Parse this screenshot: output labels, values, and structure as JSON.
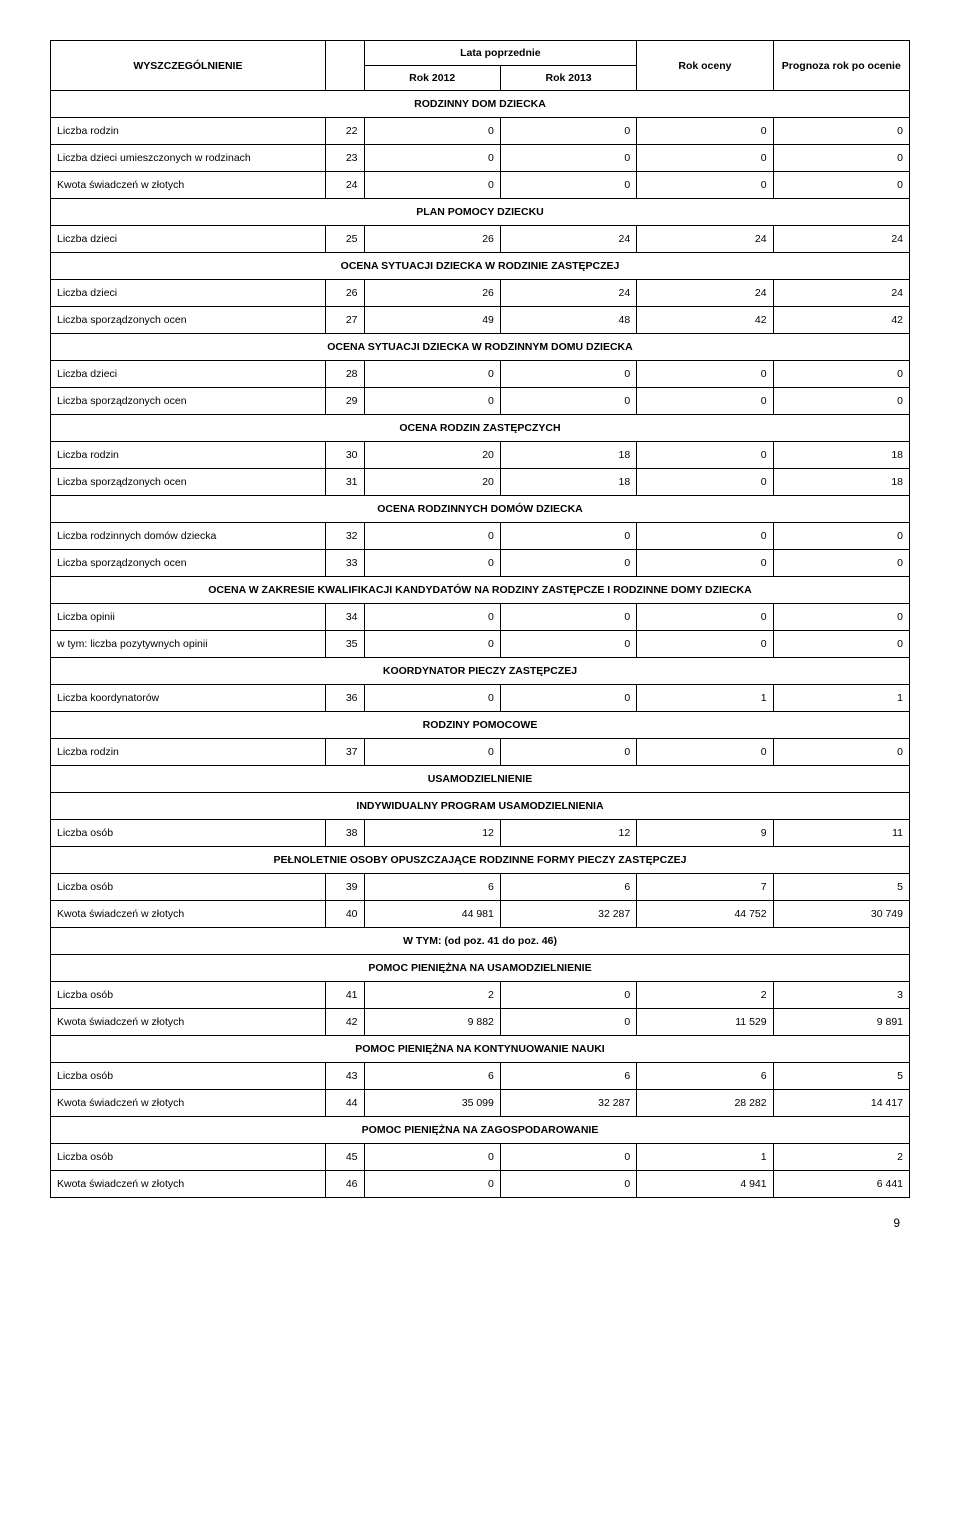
{
  "header": {
    "col1": "WYSZCZEGÓLNIENIE",
    "col2": "Lata poprzednie",
    "col2a": "Rok 2012",
    "col2b": "Rok 2013",
    "col3": "Rok oceny",
    "col4": "Prognoza rok po ocenie"
  },
  "rows": [
    {
      "type": "section",
      "text": "RODZINNY DOM DZIECKA"
    },
    {
      "type": "data",
      "label": "Liczba rodzin",
      "n": "22",
      "v": [
        "0",
        "0",
        "0",
        "0"
      ]
    },
    {
      "type": "data",
      "label": "Liczba dzieci umieszczonych w rodzinach",
      "n": "23",
      "v": [
        "0",
        "0",
        "0",
        "0"
      ]
    },
    {
      "type": "data",
      "label": "Kwota świadczeń w złotych",
      "n": "24",
      "v": [
        "0",
        "0",
        "0",
        "0"
      ]
    },
    {
      "type": "section",
      "text": "PLAN POMOCY DZIECKU"
    },
    {
      "type": "data",
      "label": "Liczba dzieci",
      "n": "25",
      "v": [
        "26",
        "24",
        "24",
        "24"
      ]
    },
    {
      "type": "section",
      "text": "OCENA SYTUACJI DZIECKA W RODZINIE ZASTĘPCZEJ"
    },
    {
      "type": "data",
      "label": "Liczba dzieci",
      "n": "26",
      "v": [
        "26",
        "24",
        "24",
        "24"
      ]
    },
    {
      "type": "data",
      "label": "Liczba sporządzonych ocen",
      "n": "27",
      "v": [
        "49",
        "48",
        "42",
        "42"
      ]
    },
    {
      "type": "section",
      "text": "OCENA SYTUACJI DZIECKA W RODZINNYM DOMU DZIECKA"
    },
    {
      "type": "data",
      "label": "Liczba dzieci",
      "n": "28",
      "v": [
        "0",
        "0",
        "0",
        "0"
      ]
    },
    {
      "type": "data",
      "label": "Liczba sporządzonych ocen",
      "n": "29",
      "v": [
        "0",
        "0",
        "0",
        "0"
      ]
    },
    {
      "type": "section",
      "text": "OCENA RODZIN ZASTĘPCZYCH"
    },
    {
      "type": "data",
      "label": "Liczba rodzin",
      "n": "30",
      "v": [
        "20",
        "18",
        "0",
        "18"
      ]
    },
    {
      "type": "data",
      "label": "Liczba sporządzonych ocen",
      "n": "31",
      "v": [
        "20",
        "18",
        "0",
        "18"
      ]
    },
    {
      "type": "section",
      "text": "OCENA RODZINNYCH DOMÓW DZIECKA"
    },
    {
      "type": "data",
      "label": "Liczba rodzinnych domów dziecka",
      "n": "32",
      "v": [
        "0",
        "0",
        "0",
        "0"
      ]
    },
    {
      "type": "data",
      "label": "Liczba sporządzonych ocen",
      "n": "33",
      "v": [
        "0",
        "0",
        "0",
        "0"
      ]
    },
    {
      "type": "section",
      "text": "OCENA W ZAKRESIE KWALIFIKACJI KANDYDATÓW NA RODZINY ZASTĘPCZE I RODZINNE DOMY DZIECKA"
    },
    {
      "type": "data",
      "label": "Liczba opinii",
      "n": "34",
      "v": [
        "0",
        "0",
        "0",
        "0"
      ]
    },
    {
      "type": "data",
      "label": "w tym: liczba pozytywnych opinii",
      "n": "35",
      "v": [
        "0",
        "0",
        "0",
        "0"
      ]
    },
    {
      "type": "section",
      "text": "KOORDYNATOR PIECZY ZASTĘPCZEJ"
    },
    {
      "type": "data",
      "label": "Liczba koordynatorów",
      "n": "36",
      "v": [
        "0",
        "0",
        "1",
        "1"
      ]
    },
    {
      "type": "section",
      "text": "RODZINY POMOCOWE"
    },
    {
      "type": "data",
      "label": "Liczba rodzin",
      "n": "37",
      "v": [
        "0",
        "0",
        "0",
        "0"
      ]
    },
    {
      "type": "section",
      "text": "USAMODZIELNIENIE"
    },
    {
      "type": "section",
      "text": "INDYWIDUALNY PROGRAM USAMODZIELNIENIA"
    },
    {
      "type": "data",
      "label": "Liczba osób",
      "n": "38",
      "v": [
        "12",
        "12",
        "9",
        "11"
      ]
    },
    {
      "type": "section",
      "text": "PEŁNOLETNIE OSOBY OPUSZCZAJĄCE RODZINNE FORMY PIECZY ZASTĘPCZEJ"
    },
    {
      "type": "data",
      "label": "Liczba osób",
      "n": "39",
      "v": [
        "6",
        "6",
        "7",
        "5"
      ]
    },
    {
      "type": "data",
      "label": "Kwota świadczeń w złotych",
      "n": "40",
      "v": [
        "44 981",
        "32 287",
        "44 752",
        "30 749"
      ]
    },
    {
      "type": "section",
      "text": "W TYM: (od poz. 41 do poz. 46)"
    },
    {
      "type": "section",
      "text": "POMOC PIENIĘŻNA NA USAMODZIELNIENIE"
    },
    {
      "type": "data",
      "label": "Liczba osób",
      "n": "41",
      "v": [
        "2",
        "0",
        "2",
        "3"
      ]
    },
    {
      "type": "data",
      "label": "Kwota świadczeń w złotych",
      "n": "42",
      "v": [
        "9 882",
        "0",
        "11 529",
        "9 891"
      ]
    },
    {
      "type": "section",
      "text": "POMOC PIENIĘŻNA NA KONTYNUOWANIE NAUKI"
    },
    {
      "type": "data",
      "label": "Liczba osób",
      "n": "43",
      "v": [
        "6",
        "6",
        "6",
        "5"
      ]
    },
    {
      "type": "data",
      "label": "Kwota świadczeń w złotych",
      "n": "44",
      "v": [
        "35 099",
        "32 287",
        "28 282",
        "14 417"
      ]
    },
    {
      "type": "section",
      "text": "POMOC PIENIĘŻNA NA ZAGOSPODAROWANIE"
    },
    {
      "type": "data",
      "label": "Liczba osób",
      "n": "45",
      "v": [
        "0",
        "0",
        "1",
        "2"
      ]
    },
    {
      "type": "data",
      "label": "Kwota świadczeń w złotych",
      "n": "46",
      "v": [
        "0",
        "0",
        "4 941",
        "6 441"
      ]
    }
  ],
  "pageNumber": "9"
}
